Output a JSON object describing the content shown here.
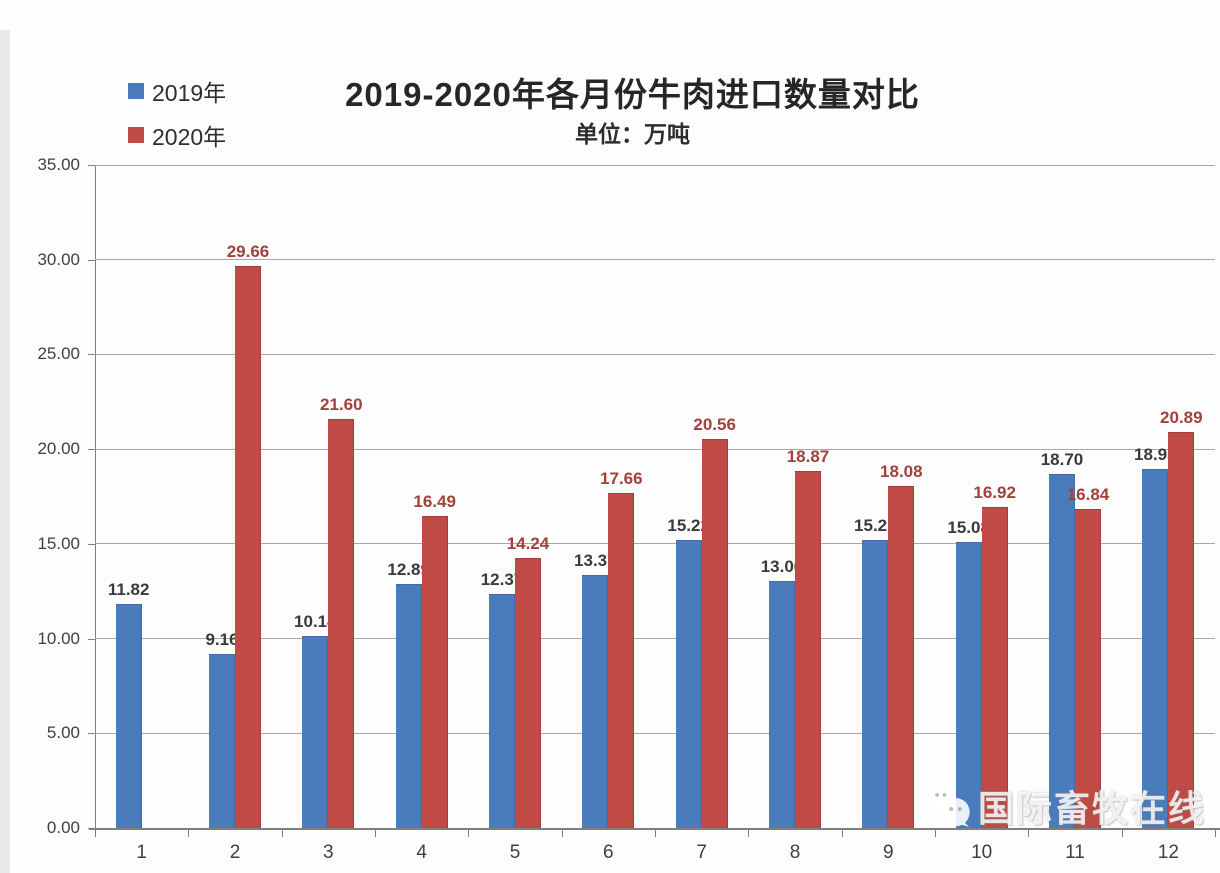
{
  "header": {
    "title": "2019-2020年各月份牛肉进口数量对比",
    "subtitle": "单位：万吨"
  },
  "legend": {
    "items": [
      {
        "label": "2019年",
        "color": "#4a7cbc"
      },
      {
        "label": "2020年",
        "color": "#bf4a46"
      }
    ]
  },
  "watermark": {
    "text": "国际畜牧在线",
    "icon": "wechat-bubbles-icon"
  },
  "colors": {
    "series_2019": "#4a7cbc",
    "series_2020": "#bf4a46",
    "label_2019": "#3a3a3a",
    "label_2020": "#a2403c",
    "grid": "#a8a8a8",
    "axis": "#7f7f7f"
  },
  "chart_data": {
    "type": "bar",
    "title": "2019-2020年各月份牛肉进口数量对比",
    "subtitle": "单位：万吨",
    "categories": [
      "1",
      "2",
      "3",
      "4",
      "5",
      "6",
      "7",
      "8",
      "9",
      "10",
      "11",
      "12"
    ],
    "series": [
      {
        "name": "2019年",
        "color": "#4a7cbc",
        "border_color": "#3f6da8",
        "label_color": "#3a3a3a",
        "values": [
          11.82,
          9.16,
          10.14,
          12.89,
          12.37,
          13.37,
          15.22,
          13.06,
          15.21,
          15.08,
          18.7,
          18.93
        ]
      },
      {
        "name": "2020年",
        "color": "#bf4a46",
        "border_color": "#9e3d39",
        "label_color": "#a2403c",
        "values": [
          null,
          29.66,
          21.6,
          16.49,
          14.24,
          17.66,
          20.56,
          18.87,
          18.08,
          16.92,
          16.84,
          20.89
        ]
      }
    ],
    "ylim": [
      0,
      35
    ],
    "ytick_step": 5,
    "ytick_labels": [
      "0.00",
      "5.00",
      "10.00",
      "15.00",
      "20.00",
      "25.00",
      "30.00",
      "35.00"
    ],
    "value_label_decimals": 2,
    "grid": true,
    "legend_position": "top-left"
  }
}
